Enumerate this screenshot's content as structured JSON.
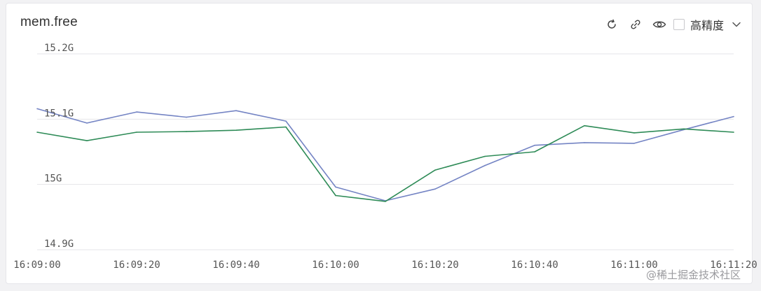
{
  "panel": {
    "title": "mem.free"
  },
  "toolbar": {
    "refresh_icon": "refresh-icon",
    "link_icon": "link-icon",
    "eye_icon": "eye-icon",
    "precision_label": "高精度",
    "precision_checked": false,
    "dropdown_icon": "chevron-down-icon"
  },
  "watermark": "@稀土掘金技术社区",
  "chart_data": {
    "type": "line",
    "title": "mem.free",
    "xlabel": "",
    "ylabel": "",
    "x_ticks": [
      "16:09:00",
      "16:09:20",
      "16:09:40",
      "16:10:00",
      "16:10:20",
      "16:10:40",
      "16:11:00",
      "16:11:20"
    ],
    "y_ticks": [
      "14.9G",
      "15G",
      "15.1G",
      "15.2G"
    ],
    "y_tick_values": [
      14.9,
      15.0,
      15.1,
      15.2
    ],
    "ylim": [
      14.9,
      15.2
    ],
    "xlim": [
      0,
      140
    ],
    "grid": true,
    "legend": "none",
    "x": [
      0,
      10,
      20,
      30,
      40,
      50,
      60,
      70,
      80,
      90,
      100,
      110,
      120,
      130,
      140
    ],
    "series": [
      {
        "color": "#7484c4",
        "values": [
          15.116,
          15.094,
          15.111,
          15.103,
          15.113,
          15.097,
          14.996,
          14.975,
          14.993,
          15.029,
          15.06,
          15.064,
          15.063,
          15.084,
          15.104
        ]
      },
      {
        "color": "#2e8b57",
        "values": [
          15.08,
          15.067,
          15.08,
          15.081,
          15.083,
          15.088,
          14.983,
          14.974,
          15.022,
          15.043,
          15.05,
          15.09,
          15.079,
          15.085,
          15.08
        ]
      }
    ]
  }
}
